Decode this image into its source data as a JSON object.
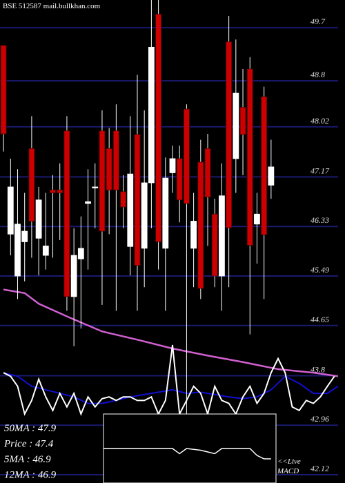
{
  "chart_data": {
    "type": "candlestick",
    "title": "BSE 512587 mail.bullkhan.com",
    "ylim": [
      41.98,
      50.17
    ],
    "xlim": [
      -0.5,
      48.5
    ],
    "yticks": [
      49.7,
      48.8,
      48.02,
      47.17,
      46.33,
      45.49,
      44.65,
      43.8,
      42.96,
      42.12
    ],
    "grid": true,
    "up_color": "#ffffff",
    "down_color": "#cc0000",
    "open": [
      49.4,
      46.2,
      45.49,
      46.07,
      47.65,
      46.13,
      45.84,
      46.95,
      46.95,
      47.95,
      45.14,
      45.78,
      46.72,
      46.99,
      47.95,
      47.65,
      47.95,
      46.92,
      45.99,
      47.89,
      45.96,
      47.07,
      49.93,
      45.96,
      47.24,
      47.48,
      48.32,
      45.96,
      47.42,
      47.65,
      46.54,
      45.49,
      49.46,
      47.48,
      48.35,
      49.0,
      46.37,
      48.53,
      47.03
    ],
    "high": [
      49.4,
      47.48,
      47.3,
      46.9,
      48.2,
      47.0,
      46.9,
      47.2,
      47.4,
      48.2,
      46.3,
      46.5,
      47.3,
      47.4,
      48.3,
      48.0,
      48.4,
      47.2,
      48.2,
      48.9,
      48.3,
      50.2,
      50.2,
      47.5,
      47.7,
      47.7,
      48.4,
      46.9,
      47.8,
      47.9,
      46.8,
      47.4,
      49.9,
      49.5,
      49.0,
      49.2,
      46.9,
      48.7,
      47.8
    ],
    "low": [
      47.6,
      45.84,
      45.1,
      45.4,
      45.8,
      45.5,
      45.6,
      45.8,
      46.1,
      44.9,
      44.3,
      44.6,
      45.6,
      46.3,
      45.0,
      46.2,
      44.9,
      46.3,
      45.5,
      44.9,
      45.3,
      46.3,
      45.6,
      44.9,
      46.9,
      46.4,
      43.0,
      45.3,
      45.1,
      46.0,
      45.3,
      44.9,
      45.3,
      46.9,
      47.2,
      44.5,
      45.7,
      45.1,
      46.8
    ],
    "close": [
      47.9,
      47.0,
      46.37,
      46.25,
      46.42,
      46.78,
      46.0,
      46.9,
      46.9,
      45.14,
      45.84,
      45.96,
      46.75,
      47.0,
      46.25,
      46.95,
      46.95,
      46.66,
      47.22,
      45.67,
      47.07,
      49.37,
      46.07,
      47.15,
      47.48,
      46.78,
      46.72,
      46.42,
      45.28,
      46.83,
      45.49,
      46.85,
      46.31,
      48.59,
      47.89,
      46.01,
      46.54,
      46.19,
      47.34
    ],
    "lines": [
      {
        "color": "#d060d0",
        "x": [
          0,
          3,
          5,
          9.3,
          14,
          19,
          24,
          29,
          34,
          39,
          44,
          47.5
        ],
        "values": [
          45.26,
          45.2,
          45.02,
          44.79,
          44.55,
          44.41,
          44.26,
          44.14,
          44.03,
          43.91,
          43.85,
          43.79
        ]
      },
      {
        "color": "#1010d0",
        "x": [
          0,
          2,
          4,
          6,
          8,
          10,
          12,
          14,
          16,
          18,
          20,
          22,
          24,
          26,
          28,
          30,
          32,
          34,
          36,
          38,
          40,
          42,
          44,
          46,
          47.5
        ],
        "values": [
          43.85,
          43.79,
          43.62,
          43.56,
          43.5,
          43.44,
          43.33,
          43.33,
          43.38,
          43.44,
          43.48,
          43.52,
          43.56,
          43.5,
          43.52,
          43.48,
          43.44,
          43.41,
          43.44,
          43.56,
          43.79,
          43.67,
          43.5,
          43.5,
          43.62
        ]
      },
      {
        "color": "#ffffff",
        "x": [
          0,
          1,
          2,
          3,
          4,
          5,
          6,
          7,
          8,
          9,
          10,
          11,
          12,
          13,
          14,
          15,
          16,
          17,
          18,
          19,
          20,
          21,
          22,
          23,
          24,
          25,
          26,
          27,
          28,
          29,
          30,
          31,
          32,
          33,
          34,
          35,
          36,
          37,
          38,
          39,
          40,
          41,
          42,
          43,
          44,
          45,
          46,
          47
        ],
        "values": [
          43.85,
          43.79,
          43.62,
          43.15,
          43.38,
          43.74,
          43.44,
          43.21,
          43.5,
          43.27,
          43.5,
          43.15,
          43.44,
          43.27,
          43.41,
          43.44,
          43.38,
          43.44,
          43.44,
          43.38,
          43.38,
          43.44,
          43.15,
          43.38,
          44.32,
          43.15,
          43.38,
          43.62,
          43.5,
          43.15,
          43.62,
          43.38,
          43.33,
          43.15,
          43.44,
          43.62,
          43.33,
          43.5,
          43.85,
          44.09,
          43.85,
          43.27,
          43.21,
          43.38,
          43.33,
          43.44,
          43.62,
          43.79
        ]
      }
    ],
    "macd": {
      "ylim": [
        -1,
        1
      ],
      "x": [
        14.2,
        20,
        24,
        25,
        26,
        28,
        29,
        30,
        31,
        35,
        36,
        37,
        38
      ],
      "values": [
        0,
        0,
        0,
        -0.15,
        0,
        -0.05,
        -0.1,
        -0.15,
        0,
        0,
        -0.2,
        -0.3,
        -0.3
      ]
    },
    "info": [
      "50MA : 47.9",
      "Price : 47.4",
      "5MA : 46.9",
      "12MA : 46.9"
    ],
    "live_label": "<<Live",
    "macd_label": "MACD"
  }
}
